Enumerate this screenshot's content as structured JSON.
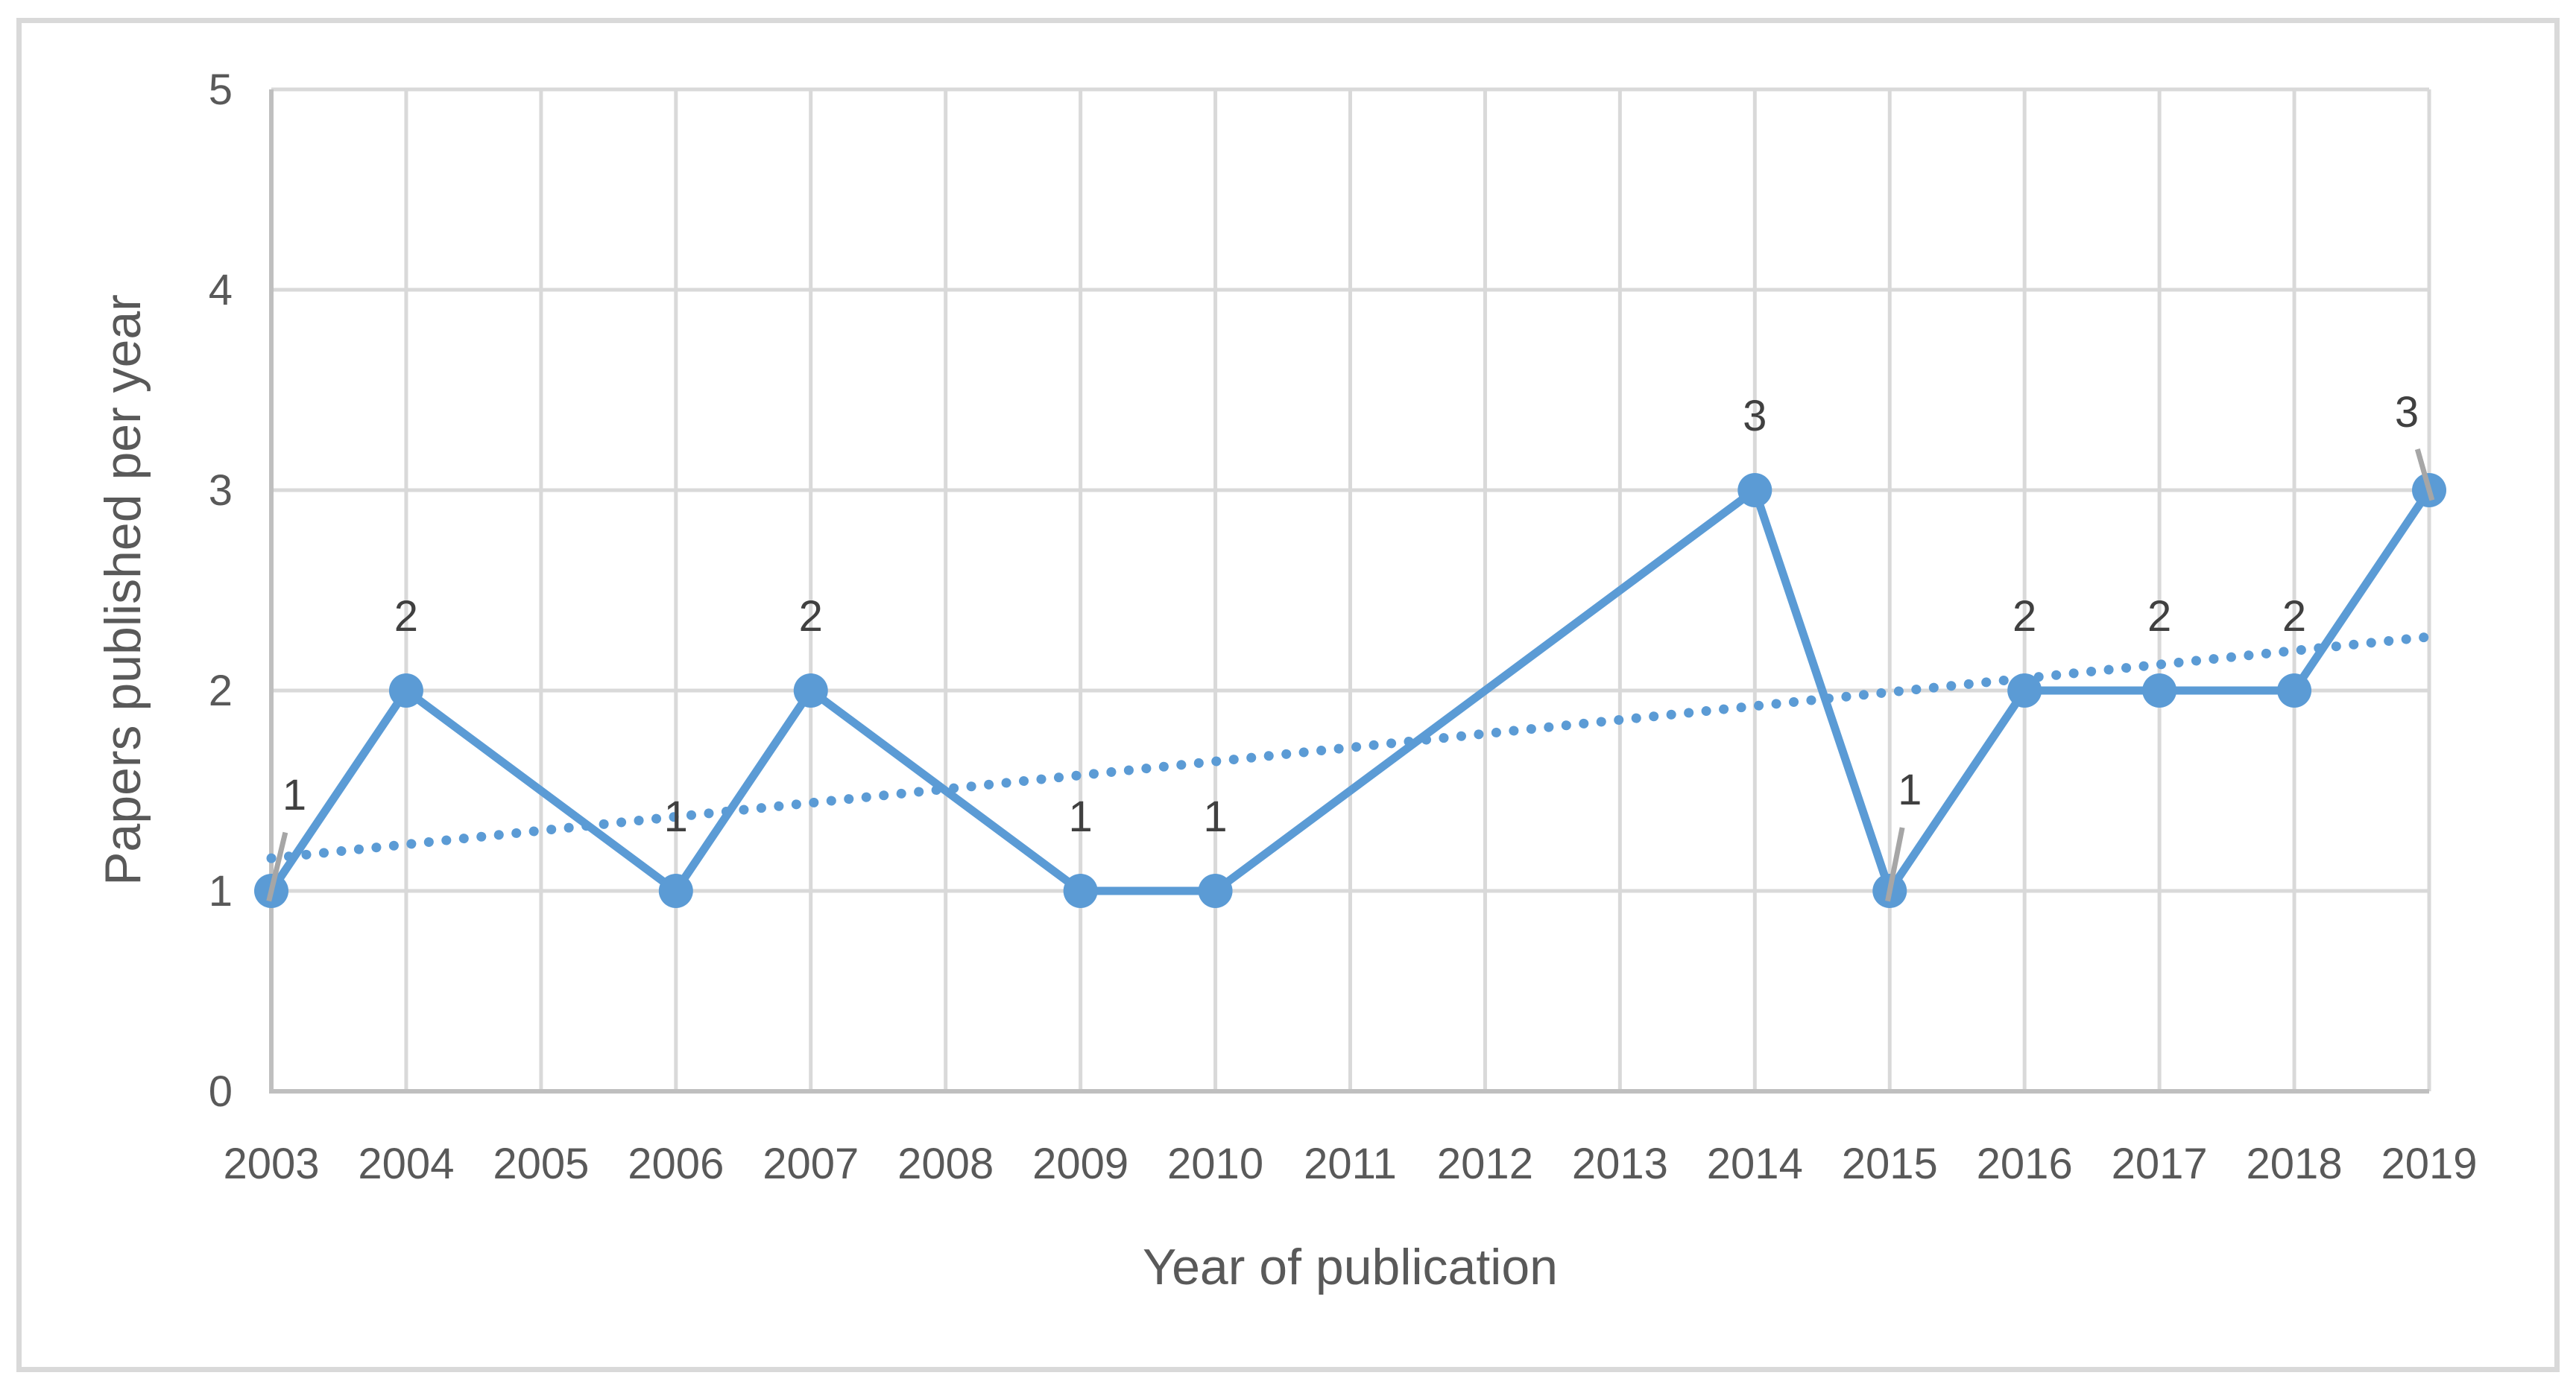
{
  "figure": {
    "background": "#ffffff",
    "border_color": "#d9d9d9"
  },
  "chart_data": {
    "type": "line",
    "title": "",
    "xlabel": "Year of publication",
    "ylabel": "Papers published per year",
    "categories": [
      "2003",
      "2004",
      "2005",
      "2006",
      "2007",
      "2008",
      "2009",
      "2010",
      "2011",
      "2012",
      "2013",
      "2014",
      "2015",
      "2016",
      "2017",
      "2018",
      "2019"
    ],
    "series": [
      {
        "name": "Papers published per year",
        "color": "#5b9bd5",
        "values": [
          1,
          2,
          null,
          1,
          2,
          null,
          1,
          1,
          null,
          null,
          null,
          3,
          1,
          2,
          2,
          2,
          3
        ],
        "data_labels": [
          "1",
          "2",
          null,
          "1",
          "2",
          null,
          "1",
          "1",
          null,
          null,
          null,
          "3",
          "1",
          "2",
          "2",
          "2",
          "3"
        ]
      }
    ],
    "trendline": {
      "type": "linear",
      "style": "round-dotted",
      "color": "#5b9bd5",
      "intercept": 1.094,
      "slope_per_year": 0.069,
      "start_value": 1.163,
      "end_value": 2.268
    },
    "ylim": [
      0,
      5
    ],
    "yticks": [
      "0",
      "1",
      "2",
      "3",
      "4",
      "5"
    ],
    "grid": true,
    "legend": "none",
    "axis_color": "#bfbfbf",
    "gridline_color": "#d9d9d9",
    "tick_label_color": "#595959",
    "data_label_color": "#404040",
    "leader_line_color": "#a6a6a6",
    "label_overrides": {
      "0": {
        "offset": [
          31,
          -129
        ],
        "leader": true
      },
      "12": {
        "offset": [
          27,
          -136
        ],
        "leader": true
      },
      "16": {
        "offset": [
          -30,
          -105
        ],
        "leader": true
      }
    }
  }
}
